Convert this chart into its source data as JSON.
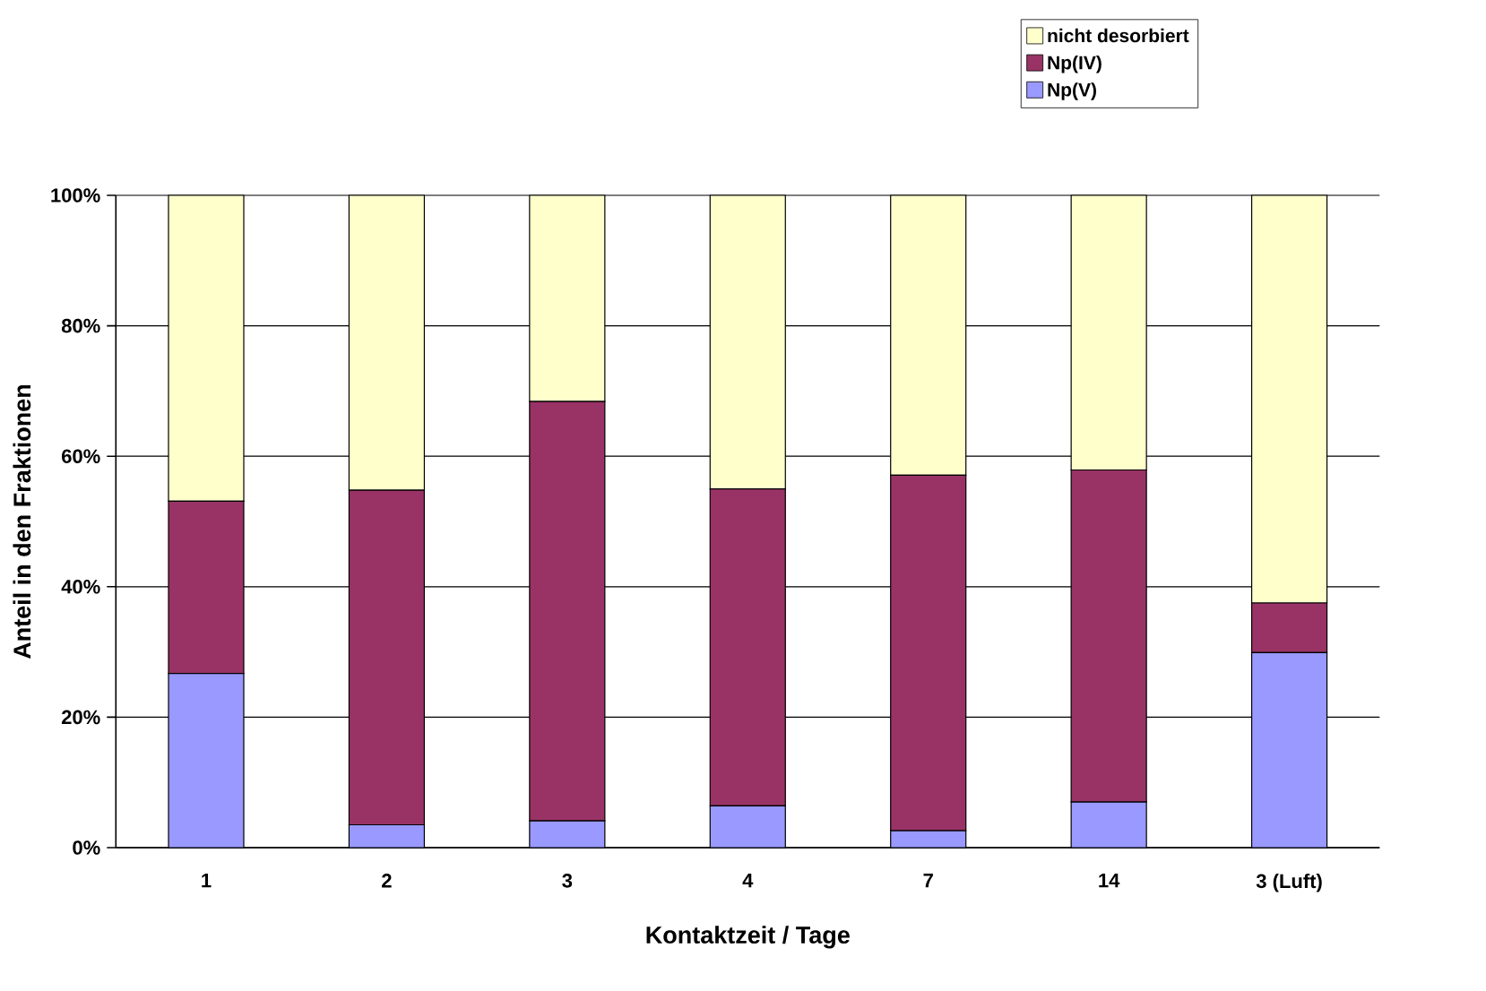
{
  "chart_data": {
    "type": "bar",
    "stacked": true,
    "xlabel": "Kontaktzeit / Tage",
    "ylabel": "Anteil in den Fraktionen",
    "categories": [
      "1",
      "2",
      "3",
      "4",
      "7",
      "14",
      "3 (Luft)"
    ],
    "series": [
      {
        "name": "Np(V)",
        "color": "#9999ff",
        "values": [
          26.7,
          3.5,
          4.1,
          6.4,
          2.6,
          7.0,
          29.9
        ]
      },
      {
        "name": "Np(IV)",
        "color": "#993366",
        "values": [
          26.4,
          51.3,
          64.3,
          48.6,
          54.5,
          50.9,
          7.6
        ]
      },
      {
        "name": "nicht desorbiert",
        "color": "#ffffcc",
        "values": [
          46.9,
          45.2,
          31.6,
          45.0,
          42.9,
          42.1,
          62.5
        ]
      }
    ],
    "ylim": [
      0,
      100
    ],
    "yticks": [
      {
        "value": 0,
        "label": "0%"
      },
      {
        "value": 20,
        "label": "20%"
      },
      {
        "value": 40,
        "label": "40%"
      },
      {
        "value": 60,
        "label": "60%"
      },
      {
        "value": 80,
        "label": "80%"
      },
      {
        "value": 100,
        "label": "100%"
      }
    ],
    "grid": "y",
    "legend": "top right"
  }
}
